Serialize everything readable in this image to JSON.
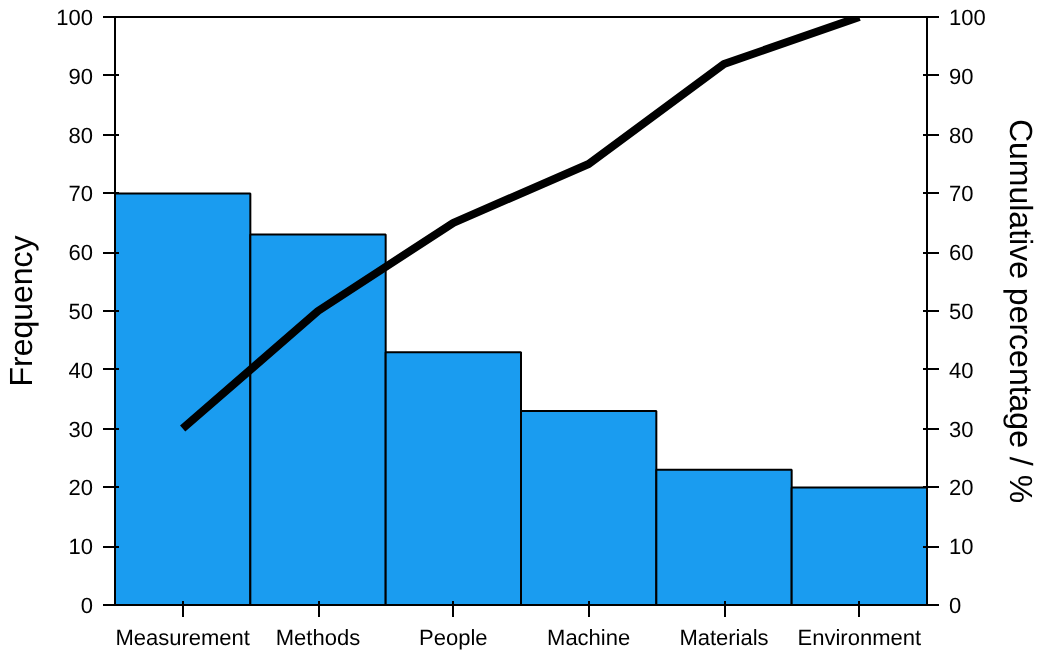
{
  "chart_data": {
    "type": "bar",
    "categories": [
      "Measurement",
      "Methods",
      "People",
      "Machine",
      "Materials",
      "Environment"
    ],
    "ylabel": "Frequency",
    "y2label": "Cumulative percentage / %",
    "ylim": [
      0,
      100
    ],
    "yticks": [
      0,
      10,
      20,
      30,
      40,
      50,
      60,
      70,
      80,
      90,
      100
    ],
    "y2lim": [
      0,
      100
    ],
    "y2ticks": [
      0,
      10,
      20,
      30,
      40,
      50,
      60,
      70,
      80,
      90,
      100
    ],
    "grid": false,
    "series": [
      {
        "color": "#1a9cf0",
        "values": [
          70,
          63,
          43,
          33,
          23,
          20
        ]
      },
      {
        "type": "line",
        "axis": "y2",
        "color": "#000000",
        "values": [
          30,
          50,
          65,
          75,
          92,
          100
        ]
      }
    ]
  }
}
